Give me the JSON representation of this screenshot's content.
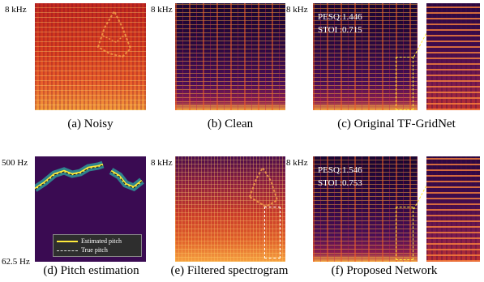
{
  "top_row": {
    "noisy": {
      "freq_label": "8 kHz",
      "caption": "(a) Noisy"
    },
    "clean": {
      "freq_label": "8 kHz",
      "caption": "(b) Clean"
    },
    "original": {
      "freq_label": "8 kHz",
      "pesq": "PESQ:1.446",
      "stoi": "STOI :0.715",
      "caption": "(c) Original TF-GridNet"
    }
  },
  "bottom_row": {
    "pitch": {
      "freq_top_label": "500 Hz",
      "freq_bottom_label": "62.5 Hz",
      "caption": "(d) Pitch estimation",
      "legend": {
        "estimated": "Estimated pitch",
        "true": "True pitch"
      }
    },
    "filtered": {
      "freq_label": "8 kHz",
      "caption": "(e) Filtered spectrogram"
    },
    "proposed": {
      "freq_label": "8 kHz",
      "pesq": "PESQ:1.546",
      "stoi": "STOI :0.753",
      "caption": "(f) Proposed Network"
    }
  },
  "colors": {
    "highlight": "#ffeb3b",
    "estimated_pitch": "#ffeb3b",
    "true_pitch": "#111111",
    "pitch_background": "#3a0b52"
  }
}
